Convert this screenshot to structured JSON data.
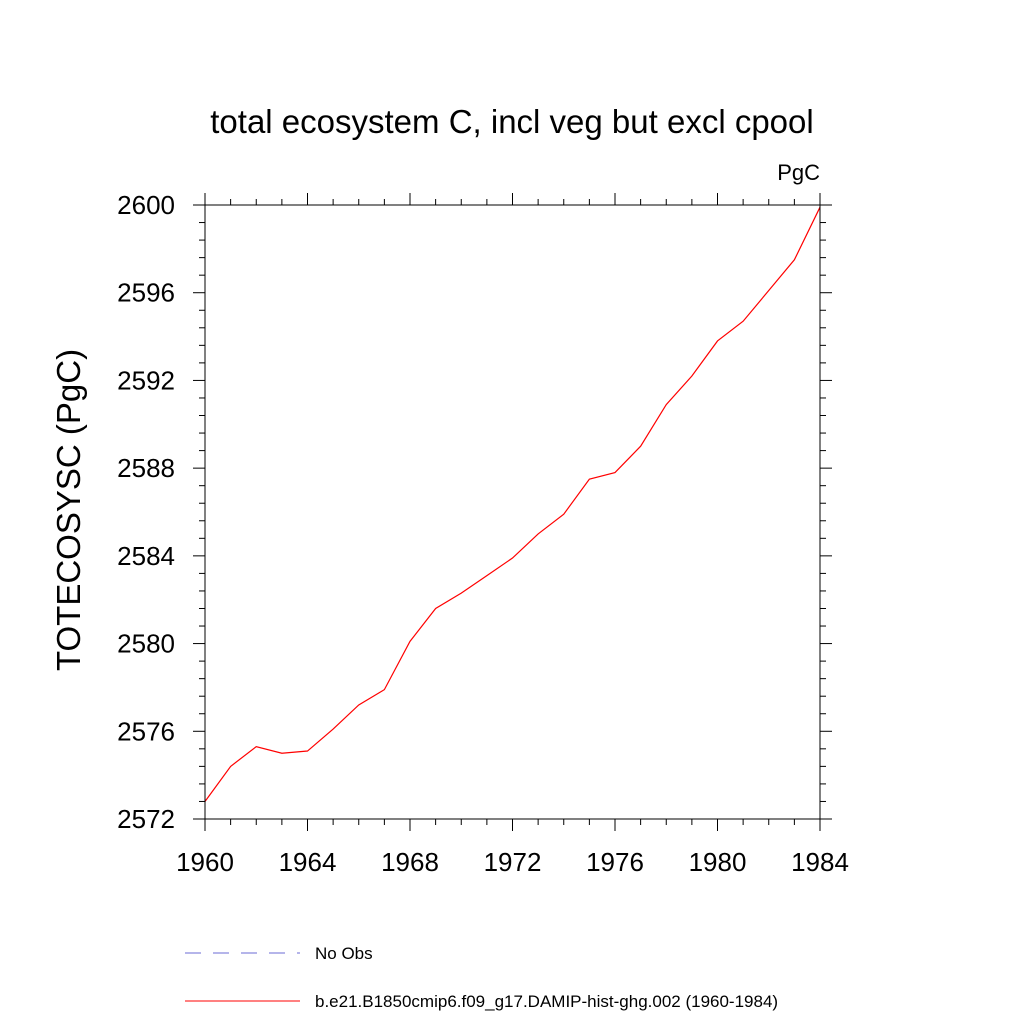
{
  "chart_data": {
    "type": "line",
    "title": "total ecosystem C, incl veg but excl cpool",
    "units_label": "PgC",
    "ylabel": "TOTECOSYSC  (PgC)",
    "xlabel": "",
    "xlim": [
      1960,
      1984
    ],
    "ylim": [
      2572,
      2600
    ],
    "x_ticks": [
      1960,
      1964,
      1968,
      1972,
      1976,
      1980,
      1984
    ],
    "y_ticks": [
      2572,
      2576,
      2580,
      2584,
      2588,
      2592,
      2596,
      2600
    ],
    "x_minor_step": 1,
    "y_minor_step": 0.8,
    "grid": false,
    "legend_position": "bottom",
    "legend": [
      {
        "label": "No Obs",
        "color": "#6b6bd6",
        "style": "dashed"
      },
      {
        "label": "b.e21.B1850cmip6.f09_g17.DAMIP-hist-ghg.002 (1960-1984)",
        "color": "#ff0000",
        "style": "solid"
      }
    ],
    "series": [
      {
        "name": "b.e21.B1850cmip6.f09_g17.DAMIP-hist-ghg.002 (1960-1984)",
        "color": "#ff0000",
        "x": [
          1960,
          1961,
          1962,
          1963,
          1964,
          1965,
          1966,
          1967,
          1968,
          1969,
          1970,
          1971,
          1972,
          1973,
          1974,
          1975,
          1976,
          1977,
          1978,
          1979,
          1980,
          1981,
          1982,
          1983,
          1984
        ],
        "values": [
          2572.8,
          2574.4,
          2575.3,
          2575.0,
          2575.1,
          2576.1,
          2577.2,
          2577.9,
          2580.1,
          2581.6,
          2582.3,
          2583.1,
          2583.9,
          2585.0,
          2585.9,
          2587.5,
          2587.8,
          2589.0,
          2590.9,
          2592.2,
          2593.8,
          2594.7,
          2596.1,
          2597.5,
          2599.9
        ]
      }
    ]
  }
}
